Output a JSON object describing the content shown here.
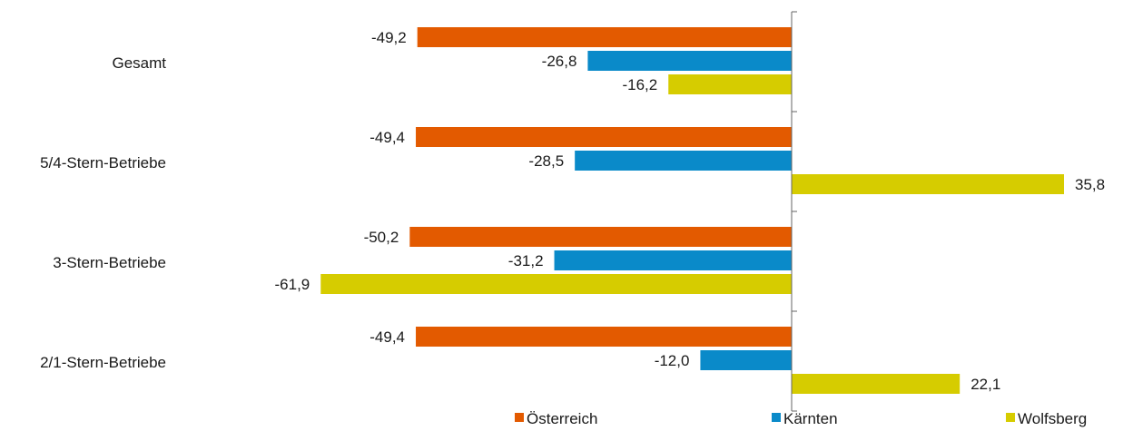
{
  "chart_data": {
    "type": "bar",
    "orientation": "horizontal",
    "categories": [
      "Gesamt",
      "5/4-Stern-Betriebe",
      "3-Stern-Betriebe",
      "2/1-Stern-Betriebe"
    ],
    "series": [
      {
        "name": "Österreich",
        "values": [
          -49.2,
          -49.4,
          -50.2,
          -49.4
        ],
        "labels": [
          "-49,2",
          "-49,4",
          "-50,2",
          "-49,4"
        ],
        "color": "#E35A00"
      },
      {
        "name": "Kärnten",
        "values": [
          -26.8,
          -28.5,
          -31.2,
          -12.0
        ],
        "labels": [
          "-26,8",
          "-28,5",
          "-31,2",
          "-12,0"
        ],
        "color": "#0A8AC9"
      },
      {
        "name": "Wolfsberg",
        "values": [
          -16.2,
          35.8,
          -61.9,
          22.1
        ],
        "labels": [
          "-16,2",
          "35,8",
          "-61,9",
          "22,1"
        ],
        "color": "#D6CC00"
      }
    ],
    "title": "",
    "legend_position": "bottom",
    "grid": false
  }
}
